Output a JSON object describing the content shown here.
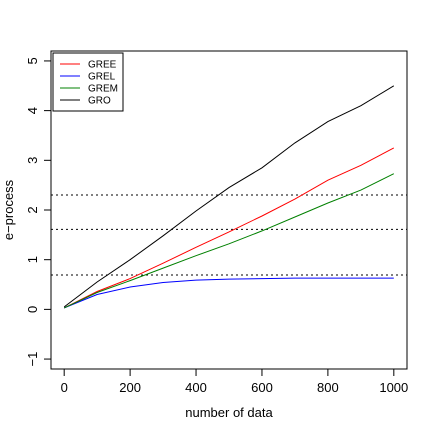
{
  "chart_data": {
    "type": "line",
    "title": "",
    "xlabel": "number of data",
    "ylabel": "e−process",
    "xlim": [
      -40,
      1040
    ],
    "ylim": [
      -1.2,
      5.2
    ],
    "xticks": [
      0,
      200,
      400,
      600,
      800,
      1000
    ],
    "xtick_labels": [
      "0",
      "200",
      "400",
      "600",
      "800",
      "1000"
    ],
    "yticks": [
      -1,
      0,
      1,
      2,
      3,
      4,
      5
    ],
    "ytick_labels": [
      "−1",
      "0",
      "1",
      "2",
      "3",
      "4",
      "5"
    ],
    "grid": false,
    "legend": {
      "placement": "top-left"
    },
    "hlines": [
      0.693,
      1.609,
      2.303
    ],
    "series": [
      {
        "name": "GREE",
        "color": "#ff0000",
        "x": [
          0,
          100,
          200,
          300,
          400,
          500,
          600,
          700,
          800,
          900,
          1000
        ],
        "y": [
          0.03,
          0.36,
          0.62,
          0.93,
          1.25,
          1.56,
          1.88,
          2.22,
          2.6,
          2.9,
          3.25
        ]
      },
      {
        "name": "GREL",
        "color": "#0000ff",
        "x": [
          0,
          100,
          200,
          300,
          400,
          500,
          600,
          700,
          800,
          900,
          1000
        ],
        "y": [
          0.03,
          0.3,
          0.45,
          0.54,
          0.59,
          0.61,
          0.62,
          0.63,
          0.63,
          0.63,
          0.63
        ]
      },
      {
        "name": "GREM",
        "color": "#008000",
        "x": [
          0,
          100,
          200,
          300,
          400,
          500,
          600,
          700,
          800,
          900,
          1000
        ],
        "y": [
          0.03,
          0.34,
          0.58,
          0.83,
          1.08,
          1.32,
          1.58,
          1.86,
          2.14,
          2.4,
          2.73
        ]
      },
      {
        "name": "GRO",
        "color": "#000000",
        "x": [
          0,
          100,
          200,
          300,
          400,
          500,
          600,
          700,
          800,
          900,
          1000
        ],
        "y": [
          0.05,
          0.55,
          1.0,
          1.48,
          1.98,
          2.45,
          2.85,
          3.35,
          3.78,
          4.1,
          4.5
        ]
      }
    ]
  }
}
